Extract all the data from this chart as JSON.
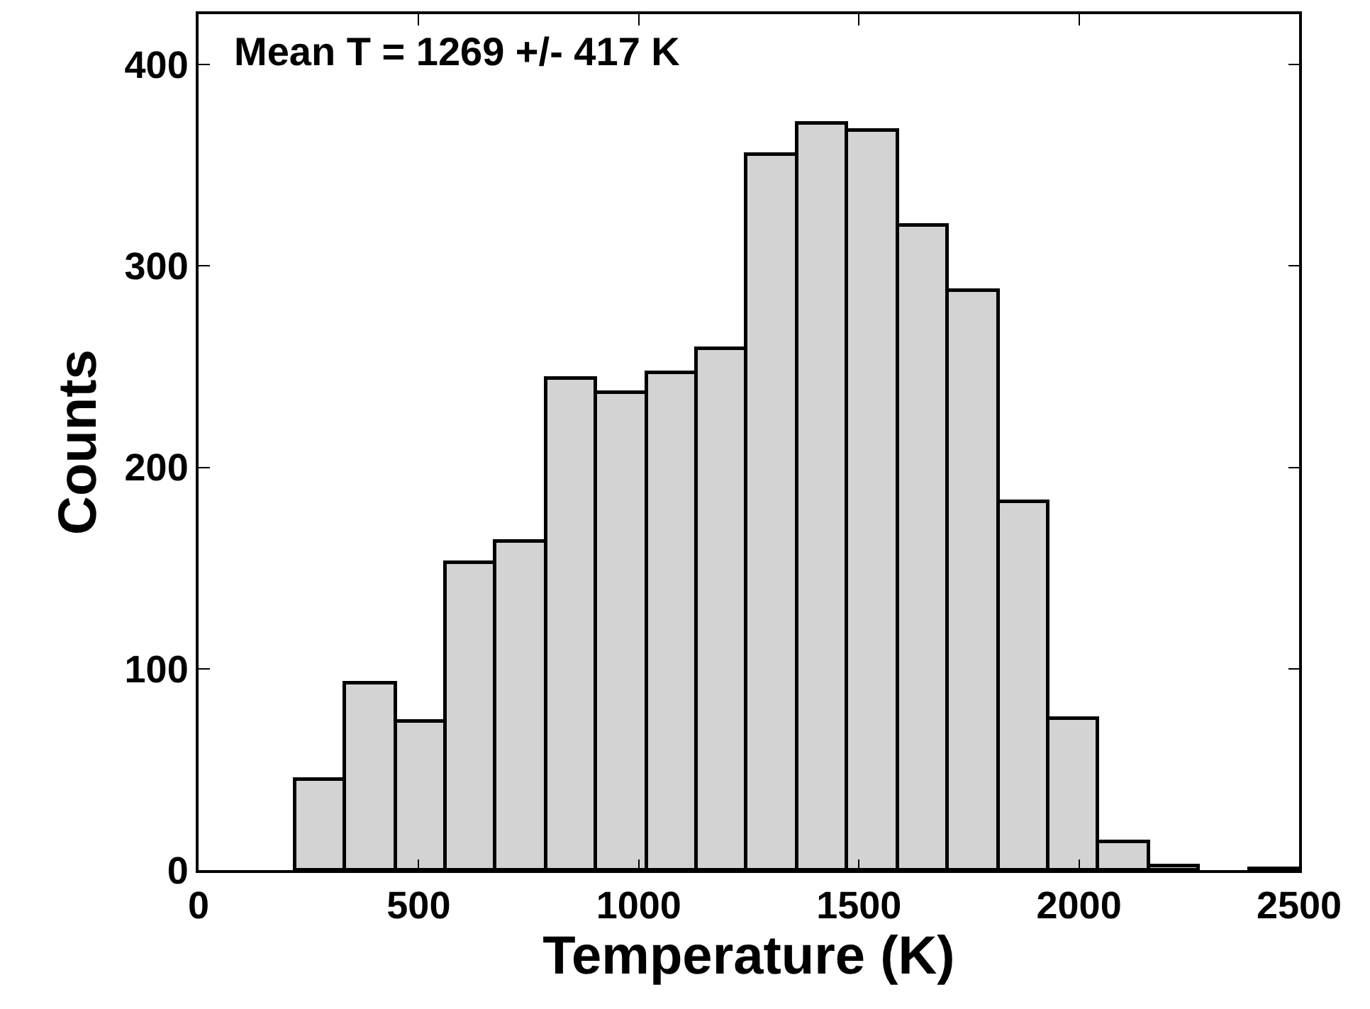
{
  "chart_data": {
    "type": "histogram",
    "xlabel": "Temperature (K)",
    "ylabel": "Counts",
    "annotations": [
      "Mean T = 1269 +/- 417 K"
    ],
    "bins": [
      218,
      332.1,
      446.2,
      560.3,
      674.4,
      788.5,
      902.6,
      1016.7,
      1130.8,
      1244.9,
      1359,
      1473.1,
      1587.2,
      1701.3,
      1815.4,
      1929.5,
      2043.6,
      2157.7,
      2271.8,
      2385.9,
      2500
    ],
    "values": [
      45,
      93,
      74,
      153,
      163,
      244,
      237,
      247,
      259,
      355,
      371,
      367,
      320,
      288,
      183,
      75,
      14,
      2,
      null,
      1
    ],
    "color": "#d3d3d3",
    "xlim": [
      0,
      2500
    ],
    "xticks": [
      0,
      500,
      1000,
      1500,
      2000,
      2500
    ],
    "ylim": [
      0,
      425
    ],
    "yticks": [
      0,
      100,
      200,
      300,
      400
    ]
  }
}
